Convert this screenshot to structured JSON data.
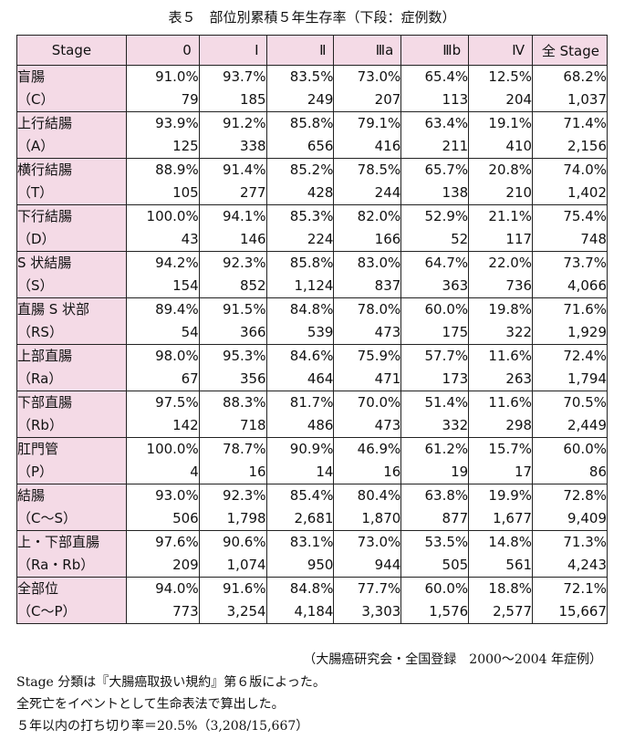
{
  "title": "表５　部位別累積５年生存率（下段：症例数）",
  "header": [
    "Stage",
    "0",
    "Ⅰ",
    "Ⅱ",
    "Ⅲa",
    "Ⅲb",
    "Ⅳ",
    "全 Stage"
  ],
  "rows": [
    {
      "name": "盲腸",
      "code": "（C）",
      "rates": [
        "91.0%",
        "93.7%",
        "83.5%",
        "73.0%",
        "65.4%",
        "12.5%",
        "68.2%"
      ],
      "counts": [
        "79",
        "185",
        "249",
        "207",
        "113",
        "204",
        "1,037"
      ]
    },
    {
      "name": "上行結腸",
      "code": "（A）",
      "rates": [
        "93.9%",
        "91.2%",
        "85.8%",
        "79.1%",
        "63.4%",
        "19.1%",
        "71.4%"
      ],
      "counts": [
        "125",
        "338",
        "656",
        "416",
        "211",
        "410",
        "2,156"
      ]
    },
    {
      "name": "横行結腸",
      "code": "（T）",
      "rates": [
        "88.9%",
        "91.4%",
        "85.2%",
        "78.5%",
        "65.7%",
        "20.8%",
        "74.0%"
      ],
      "counts": [
        "105",
        "277",
        "428",
        "244",
        "138",
        "210",
        "1,402"
      ]
    },
    {
      "name": "下行結腸",
      "code": "（D）",
      "rates": [
        "100.0%",
        "94.1%",
        "85.3%",
        "82.0%",
        "52.9%",
        "21.1%",
        "75.4%"
      ],
      "counts": [
        "43",
        "146",
        "224",
        "166",
        "52",
        "117",
        "748"
      ]
    },
    {
      "name": "S 状結腸",
      "code": "（S）",
      "rates": [
        "94.2%",
        "92.3%",
        "85.8%",
        "83.0%",
        "64.7%",
        "22.0%",
        "73.7%"
      ],
      "counts": [
        "154",
        "852",
        "1,124",
        "837",
        "363",
        "736",
        "4,066"
      ]
    },
    {
      "name": "直腸 S 状部",
      "code": "（RS）",
      "rates": [
        "89.4%",
        "91.5%",
        "84.8%",
        "78.0%",
        "60.0%",
        "19.8%",
        "71.6%"
      ],
      "counts": [
        "54",
        "366",
        "539",
        "473",
        "175",
        "322",
        "1,929"
      ]
    },
    {
      "name": "上部直腸",
      "code": "（Ra）",
      "rates": [
        "98.0%",
        "95.3%",
        "84.6%",
        "75.9%",
        "57.7%",
        "11.6%",
        "72.4%"
      ],
      "counts": [
        "67",
        "356",
        "464",
        "471",
        "173",
        "263",
        "1,794"
      ]
    },
    {
      "name": "下部直腸",
      "code": "（Rb）",
      "rates": [
        "97.5%",
        "88.3%",
        "81.7%",
        "70.0%",
        "51.4%",
        "11.6%",
        "70.5%"
      ],
      "counts": [
        "142",
        "718",
        "486",
        "473",
        "332",
        "298",
        "2,449"
      ]
    },
    {
      "name": "肛門管",
      "code": "（P）",
      "rates": [
        "100.0%",
        "78.7%",
        "90.9%",
        "46.9%",
        "61.2%",
        "15.7%",
        "60.0%"
      ],
      "counts": [
        "4",
        "16",
        "14",
        "16",
        "19",
        "17",
        "86"
      ]
    },
    {
      "name": "結腸",
      "code": "（C〜S）",
      "rates": [
        "93.0%",
        "92.3%",
        "85.4%",
        "80.4%",
        "63.8%",
        "19.9%",
        "72.8%"
      ],
      "counts": [
        "506",
        "1,798",
        "2,681",
        "1,870",
        "877",
        "1,677",
        "9,409"
      ]
    },
    {
      "name": "上・下部直腸",
      "code": "（Ra・Rb）",
      "rates": [
        "97.6%",
        "90.6%",
        "83.1%",
        "73.0%",
        "53.5%",
        "14.8%",
        "71.3%"
      ],
      "counts": [
        "209",
        "1,074",
        "950",
        "944",
        "505",
        "561",
        "4,243"
      ]
    },
    {
      "name": "全部位",
      "code": "（C〜P）",
      "rates": [
        "94.0%",
        "91.6%",
        "84.8%",
        "77.7%",
        "60.0%",
        "18.8%",
        "72.1%"
      ],
      "counts": [
        "773",
        "3,254",
        "4,184",
        "3,303",
        "1,576",
        "2,577",
        "15,667"
      ]
    }
  ],
  "source": "（大腸癌研究会・全国登録　2000〜2004 年症例）",
  "notes": [
    "Stage 分類は『大腸癌取扱い規約』第６版によった。",
    "全死亡をイベントとして生命表法で算出した。",
    "５年以内の打ち切り率＝20.5%（3,208/15,667）"
  ]
}
